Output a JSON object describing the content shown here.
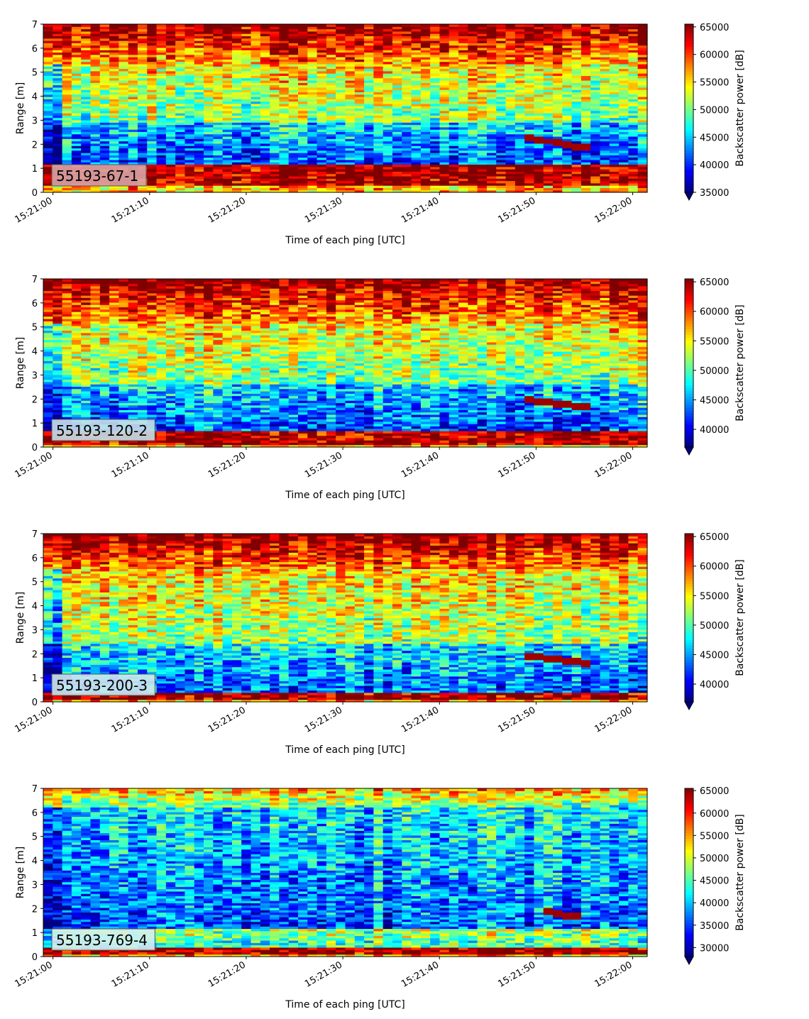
{
  "chart_data": [
    {
      "type": "heatmap",
      "label": "55193-67-1",
      "xlabel": "Time of each ping [UTC]",
      "ylabel": "Range [m]",
      "xticks": [
        "15:21:00",
        "15:21:10",
        "15:21:20",
        "15:21:30",
        "15:21:40",
        "15:21:50",
        "15:22:00"
      ],
      "xlim_seconds": [
        -1,
        61.5
      ],
      "ylim": [
        0,
        7
      ],
      "yticks": [
        0,
        1,
        2,
        3,
        4,
        5,
        6,
        7
      ],
      "colorbar_label": "Backscatter power [dB]",
      "colorbar_ticks": [
        35000,
        40000,
        45000,
        50000,
        55000,
        60000,
        65000
      ],
      "vmin": 35000,
      "vmax": 65500,
      "layers": {
        "floor_top": 1.2,
        "floor_bottom": 0.25,
        "low_band_top": 2.9,
        "high_band_start": 5.3
      },
      "label_box_color": "#d9a3a6",
      "sloped_feature": {
        "t0": 49,
        "t1": 56,
        "r0": 2.3,
        "r1": 1.8
      }
    },
    {
      "type": "heatmap",
      "label": "55193-120-2",
      "xlabel": "Time of each ping [UTC]",
      "ylabel": "Range [m]",
      "xticks": [
        "15:21:00",
        "15:21:10",
        "15:21:20",
        "15:21:30",
        "15:21:40",
        "15:21:50",
        "15:22:00"
      ],
      "xlim_seconds": [
        -1,
        61.5
      ],
      "ylim": [
        0,
        7
      ],
      "yticks": [
        0,
        1,
        2,
        3,
        4,
        5,
        6,
        7
      ],
      "colorbar_label": "Backscatter power [dB]",
      "colorbar_ticks": [
        40000,
        45000,
        50000,
        55000,
        60000,
        65000
      ],
      "vmin": 37000,
      "vmax": 65500,
      "layers": {
        "floor_top": 0.65,
        "floor_bottom": 0.05,
        "low_band_top": 2.6,
        "high_band_start": 5.2
      },
      "label_box_color": "#c8dfe7",
      "sloped_feature": {
        "t0": 49,
        "t1": 56,
        "r0": 2.0,
        "r1": 1.65
      }
    },
    {
      "type": "heatmap",
      "label": "55193-200-3",
      "xlabel": "Time of each ping [UTC]",
      "ylabel": "Range [m]",
      "xticks": [
        "15:21:00",
        "15:21:10",
        "15:21:20",
        "15:21:30",
        "15:21:40",
        "15:21:50",
        "15:22:00"
      ],
      "xlim_seconds": [
        -1,
        61.5
      ],
      "ylim": [
        0,
        7
      ],
      "yticks": [
        0,
        1,
        2,
        3,
        4,
        5,
        6,
        7
      ],
      "colorbar_label": "Backscatter power [dB]",
      "colorbar_ticks": [
        40000,
        45000,
        50000,
        55000,
        60000,
        65000
      ],
      "vmin": 37000,
      "vmax": 65500,
      "layers": {
        "floor_top": 0.4,
        "floor_bottom": 0.05,
        "low_band_top": 2.4,
        "high_band_start": 5.5
      },
      "label_box_color": "#cfe7ec",
      "sloped_feature": {
        "t0": 49,
        "t1": 56,
        "r0": 1.95,
        "r1": 1.6
      }
    },
    {
      "type": "heatmap",
      "label": "55193-769-4",
      "xlabel": "Time of each ping [UTC]",
      "ylabel": "Range [m]",
      "xticks": [
        "15:21:00",
        "15:21:10",
        "15:21:20",
        "15:21:30",
        "15:21:40",
        "15:21:50",
        "15:22:00"
      ],
      "xlim_seconds": [
        -1,
        61.5
      ],
      "ylim": [
        0,
        7
      ],
      "yticks": [
        0,
        1,
        2,
        3,
        4,
        5,
        6,
        7
      ],
      "colorbar_label": "Backscatter power [dB]",
      "colorbar_ticks": [
        30000,
        35000,
        40000,
        45000,
        50000,
        55000,
        60000,
        65000
      ],
      "vmin": 28000,
      "vmax": 65500,
      "layers": {
        "floor_top": 0.35,
        "floor_bottom": 0.05,
        "low_band_top": 1.2,
        "high_band_start": 6.2
      },
      "label_box_color": "#d4eef0",
      "sloped_feature": {
        "t0": 51,
        "t1": 55,
        "r0": 1.9,
        "r1": 1.6
      }
    }
  ]
}
